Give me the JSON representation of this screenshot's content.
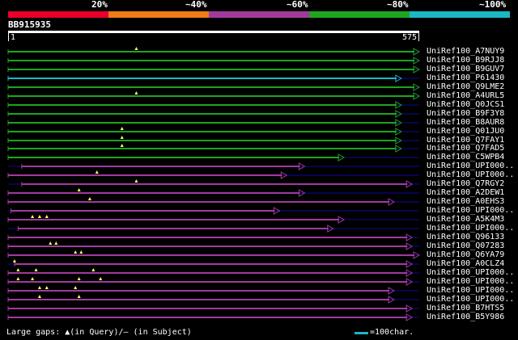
{
  "legend": {
    "labels": [
      "20%",
      "~40%",
      "~60%",
      "~80%",
      "~100%"
    ],
    "colors": [
      "#e8002a",
      "#ef7a16",
      "#a23a9d",
      "#1ea51e",
      "#19b8c3"
    ]
  },
  "query": {
    "id": "BB915935",
    "start": "1",
    "end": "575"
  },
  "hits": [
    {
      "label": "UniRef100_A7NUY9",
      "color": "green",
      "start": 1,
      "end": 575,
      "gaps": [
        180
      ]
    },
    {
      "label": "UniRef100_B9RJJ8",
      "color": "green",
      "start": 1,
      "end": 575
    },
    {
      "label": "UniRef100_B9GUV7",
      "color": "green",
      "start": 1,
      "end": 575
    },
    {
      "label": "UniRef100_P61430",
      "color": "cyan",
      "start": 1,
      "end": 550
    },
    {
      "label": "UniRef100_Q9LME2",
      "color": "green",
      "start": 1,
      "end": 575
    },
    {
      "label": "UniRef100_A4URL5",
      "color": "green",
      "start": 1,
      "end": 575,
      "gaps": [
        180
      ]
    },
    {
      "label": "UniRef100_Q0JCS1",
      "color": "green",
      "start": 1,
      "end": 550
    },
    {
      "label": "UniRef100_B9F3Y8",
      "color": "green",
      "start": 1,
      "end": 550
    },
    {
      "label": "UniRef100_B8AUR8",
      "color": "green",
      "start": 1,
      "end": 550
    },
    {
      "label": "UniRef100_Q01JU0",
      "color": "green",
      "start": 1,
      "end": 550,
      "gaps": [
        160
      ]
    },
    {
      "label": "UniRef100_Q7FAY1",
      "color": "green",
      "start": 1,
      "end": 550,
      "gaps": [
        160
      ]
    },
    {
      "label": "UniRef100_Q7FAD5",
      "color": "green",
      "start": 1,
      "end": 550,
      "gaps": [
        160
      ]
    },
    {
      "label": "UniRef100_C5WPB4",
      "color": "green",
      "start": 1,
      "end": 470
    },
    {
      "label": "UniRef100_UPI000..",
      "color": "purple",
      "start": 20,
      "end": 415
    },
    {
      "label": "UniRef100_UPI000..",
      "color": "purple",
      "start": 1,
      "end": 390,
      "gaps": [
        125
      ]
    },
    {
      "label": "UniRef100_Q7RGY2",
      "color": "purple",
      "start": 20,
      "end": 565,
      "gaps": [
        180
      ]
    },
    {
      "label": "UniRef100_A2DEW1",
      "color": "purple",
      "start": 1,
      "end": 415,
      "gaps": [
        100
      ]
    },
    {
      "label": "UniRef100_A0EHS3",
      "color": "purple",
      "start": 1,
      "end": 540,
      "gaps": [
        115
      ]
    },
    {
      "label": "UniRef100_UPI000..",
      "color": "purple",
      "start": 5,
      "end": 380
    },
    {
      "label": "UniRef100_A5K4M3",
      "color": "purple",
      "start": 1,
      "end": 470,
      "gaps": [
        35,
        45,
        55
      ]
    },
    {
      "label": "UniRef100_UPI000..",
      "color": "purple",
      "start": 15,
      "end": 455
    },
    {
      "label": "UniRef100_Q96133",
      "color": "purple",
      "start": 1,
      "end": 565
    },
    {
      "label": "UniRef100_Q07283",
      "color": "purple",
      "start": 1,
      "end": 565,
      "gaps": [
        60,
        68
      ]
    },
    {
      "label": "UniRef100_Q6YA79",
      "color": "purple",
      "start": 1,
      "end": 575,
      "gaps": [
        95,
        103
      ]
    },
    {
      "label": "UniRef100_A0CLZ4",
      "color": "purple",
      "start": 10,
      "end": 565,
      "gaps": [
        10
      ]
    },
    {
      "label": "UniRef100_UPI000..",
      "color": "purple",
      "start": 1,
      "end": 565,
      "gaps": [
        15,
        40,
        120
      ]
    },
    {
      "label": "UniRef100_UPI000..",
      "color": "purple",
      "start": 1,
      "end": 565,
      "gaps": [
        15,
        35,
        100,
        130
      ]
    },
    {
      "label": "UniRef100_UPI000..",
      "color": "purple",
      "start": 1,
      "end": 540,
      "gaps": [
        45,
        55,
        95
      ]
    },
    {
      "label": "UniRef100_UPI000..",
      "color": "purple",
      "start": 1,
      "end": 540,
      "gaps": [
        45,
        100
      ]
    },
    {
      "label": "UniRef100_B7HTS5",
      "color": "purple",
      "start": 1,
      "end": 565
    },
    {
      "label": "UniRef100_B5Y986",
      "color": "purple",
      "start": 1,
      "end": 565
    }
  ],
  "hit_colors": {
    "green": "#1ea51e",
    "cyan": "#19b8c3",
    "purple": "#a23a9d",
    "gap_line": "#0a0a9a"
  },
  "footer": {
    "gaps_text": "Large gaps: ▲(in Query)/— (in Subject)",
    "scale_text": "=100char.",
    "scale_color": "#19b8c3"
  }
}
